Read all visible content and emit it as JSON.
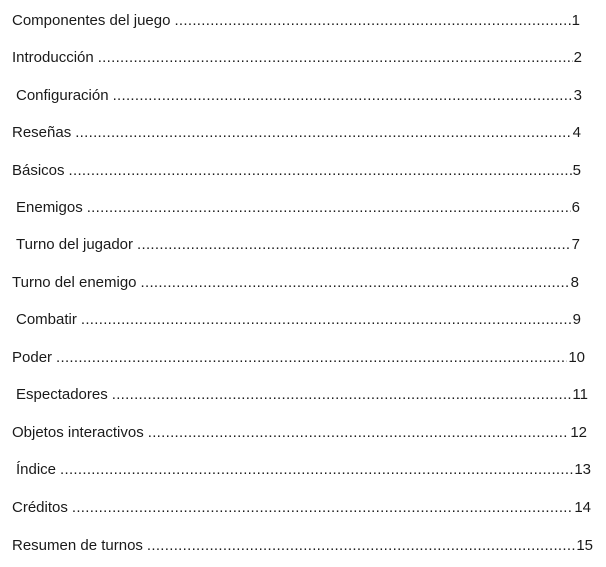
{
  "toc": {
    "entries": [
      {
        "title": "Componentes del juego",
        "page": "1"
      },
      {
        "title": "Introducción",
        "page": "2"
      },
      {
        "title": "Configuración",
        "page": "3"
      },
      {
        "title": "Reseñas",
        "page": "4"
      },
      {
        "title": "Básicos",
        "page": "5"
      },
      {
        "title": "Enemigos",
        "page": "6"
      },
      {
        "title": "Turno del jugador",
        "page": "7"
      },
      {
        "title": "Turno del enemigo",
        "page": "8"
      },
      {
        "title": "Combatir",
        "page": "9"
      },
      {
        "title": "Poder",
        "page": "10"
      },
      {
        "title": "Espectadores",
        "page": "11"
      },
      {
        "title": "Objetos interactivos",
        "page": "12"
      },
      {
        "title": "Índice",
        "page": "13"
      },
      {
        "title": "Créditos",
        "page": "14"
      },
      {
        "title": "Resumen de turnos",
        "page": "15"
      }
    ]
  }
}
